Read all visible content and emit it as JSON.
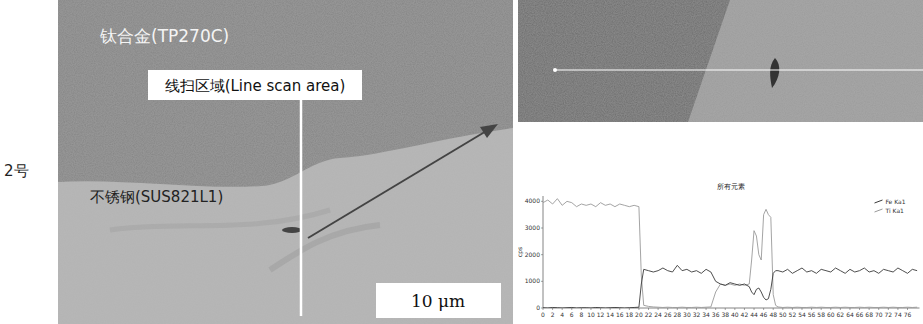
{
  "figure": {
    "row_label": "2号",
    "sem_image": {
      "upper_label": "钛合金(TP270C)",
      "scan_label": "线扫区域(Line scan area)",
      "lower_label": "不锈钢(SUS821L1)",
      "scale_bar": "10 μm"
    }
  },
  "chart_data": {
    "type": "line",
    "title": "所有元素",
    "y_label": "cps",
    "x": [
      0,
      1,
      2,
      3,
      4,
      5,
      6,
      7,
      8,
      9,
      10,
      11,
      12,
      13,
      14,
      15,
      16,
      17,
      18,
      19,
      20,
      20.5,
      21,
      22,
      23,
      24,
      25,
      26,
      27,
      28,
      29,
      30,
      31,
      32,
      33,
      34,
      35,
      36,
      37,
      38,
      39,
      40,
      41,
      42,
      43,
      43.5,
      44,
      44.5,
      45,
      45.5,
      46,
      46.5,
      47,
      47.5,
      48,
      48.5,
      49,
      50,
      51,
      52,
      53,
      54,
      55,
      56,
      57,
      58,
      59,
      60,
      61,
      62,
      63,
      64,
      65,
      66,
      67,
      68,
      69,
      70,
      71,
      72,
      73,
      74,
      75,
      76,
      77,
      78
    ],
    "series": [
      {
        "name": "Fe Ka1",
        "color": "#3a3a3a",
        "values": [
          10,
          0,
          20,
          10,
          0,
          10,
          20,
          0,
          10,
          10,
          0,
          20,
          10,
          0,
          10,
          20,
          10,
          0,
          10,
          20,
          30,
          900,
          1450,
          1400,
          1350,
          1400,
          1500,
          1400,
          1350,
          1600,
          1400,
          1450,
          1350,
          1400,
          1300,
          1450,
          1350,
          1000,
          900,
          850,
          950,
          900,
          850,
          900,
          800,
          600,
          500,
          700,
          750,
          600,
          400,
          300,
          350,
          700,
          1300,
          1400,
          1400,
          1350,
          1450,
          1300,
          1400,
          1500,
          1350,
          1400,
          1300,
          1450,
          1400,
          1350,
          1500,
          1400,
          1300,
          1450,
          1350,
          1400,
          1500,
          1350,
          1400,
          1300,
          1450,
          1400,
          1350,
          1500,
          1400,
          1300,
          1450,
          1400
        ]
      },
      {
        "name": "Ti Ka1",
        "color": "#9a9a9a",
        "values": [
          3950,
          4050,
          3900,
          4100,
          3850,
          4000,
          3950,
          3800,
          3900,
          3850,
          3900,
          3800,
          3950,
          3850,
          3900,
          3800,
          3900,
          3850,
          3800,
          3850,
          3800,
          1200,
          100,
          60,
          40,
          30,
          20,
          30,
          20,
          20,
          30,
          20,
          20,
          30,
          20,
          30,
          40,
          600,
          900,
          850,
          900,
          850,
          900,
          850,
          900,
          1800,
          2900,
          2700,
          2000,
          1800,
          3500,
          3700,
          3500,
          3400,
          500,
          100,
          40,
          20,
          30,
          20,
          30,
          20,
          20,
          30,
          20,
          30,
          20,
          20,
          30,
          20,
          30,
          20,
          20,
          30,
          20,
          30,
          20,
          20,
          30,
          20,
          30,
          20,
          20,
          30,
          20,
          30
        ]
      }
    ],
    "xlim": [
      0,
      78.5
    ],
    "xticks": [
      0,
      2,
      4,
      6,
      8,
      10,
      12,
      14,
      16,
      18,
      20,
      22,
      24,
      26,
      28,
      30,
      32,
      34,
      36,
      38,
      40,
      42,
      44,
      46,
      48,
      50,
      52,
      54,
      56,
      58,
      60,
      62,
      64,
      66,
      68,
      70,
      72,
      74,
      76
    ],
    "ylim": [
      0,
      4200
    ],
    "yticks": [
      0,
      1000,
      2000,
      3000,
      4000
    ],
    "grid": false,
    "legend": "top-right"
  }
}
